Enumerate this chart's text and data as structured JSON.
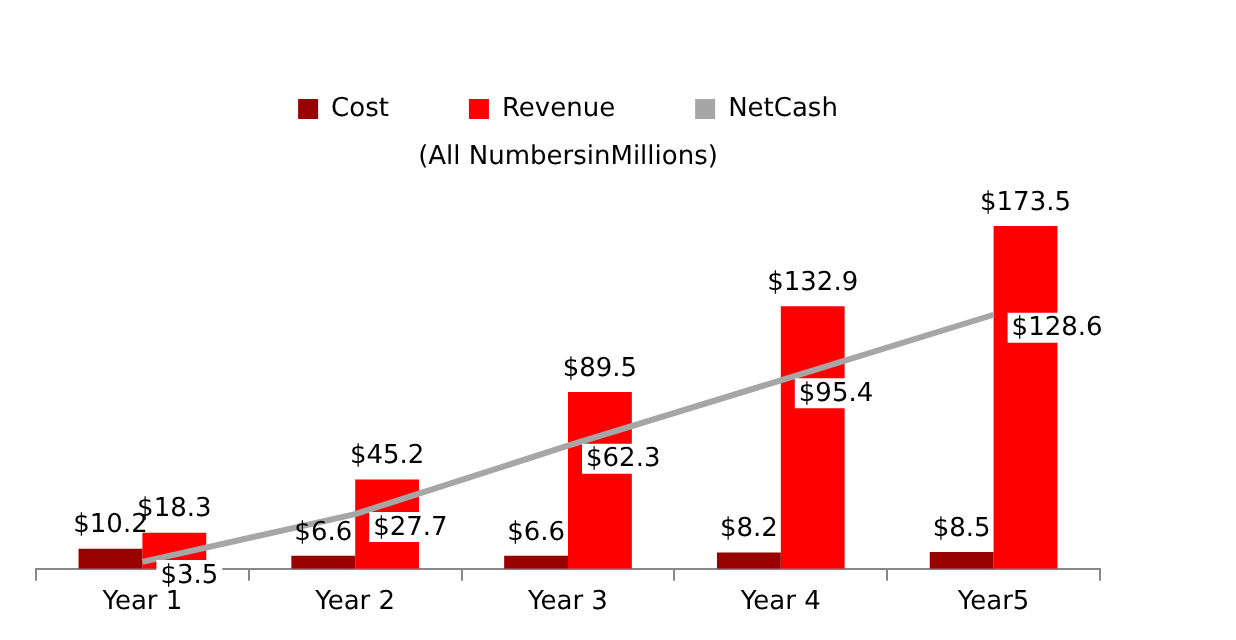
{
  "chart_data": {
    "type": "bar",
    "subtitle": "(All NumbersinMillions)",
    "categories": [
      "Year 1",
      "Year 2",
      "Year 3",
      "Year 4",
      "Year5"
    ],
    "series": [
      {
        "name": "Cost",
        "color": "#990000",
        "values": [
          10.2,
          6.6,
          6.6,
          8.2,
          8.5
        ],
        "value_labels": [
          "$10.2",
          "$6.6",
          "$6.6",
          "$8.2",
          "$8.5"
        ]
      },
      {
        "name": "Revenue",
        "color": "#ff0000",
        "values": [
          18.3,
          45.2,
          89.5,
          132.9,
          173.5
        ],
        "value_labels": [
          "$18.3",
          "$45.2",
          "$89.5",
          "$132.9",
          "$173.5"
        ]
      },
      {
        "name": "NetCash",
        "type": "line",
        "color": "#a6a6a6",
        "values": [
          3.5,
          27.7,
          62.3,
          95.4,
          128.6
        ],
        "value_labels": [
          "$3.5",
          "$27.7",
          "$62.3",
          "$95.4",
          "$128.6"
        ]
      }
    ],
    "legend": "top",
    "marker": "none",
    "tick_labels": "x"
  }
}
